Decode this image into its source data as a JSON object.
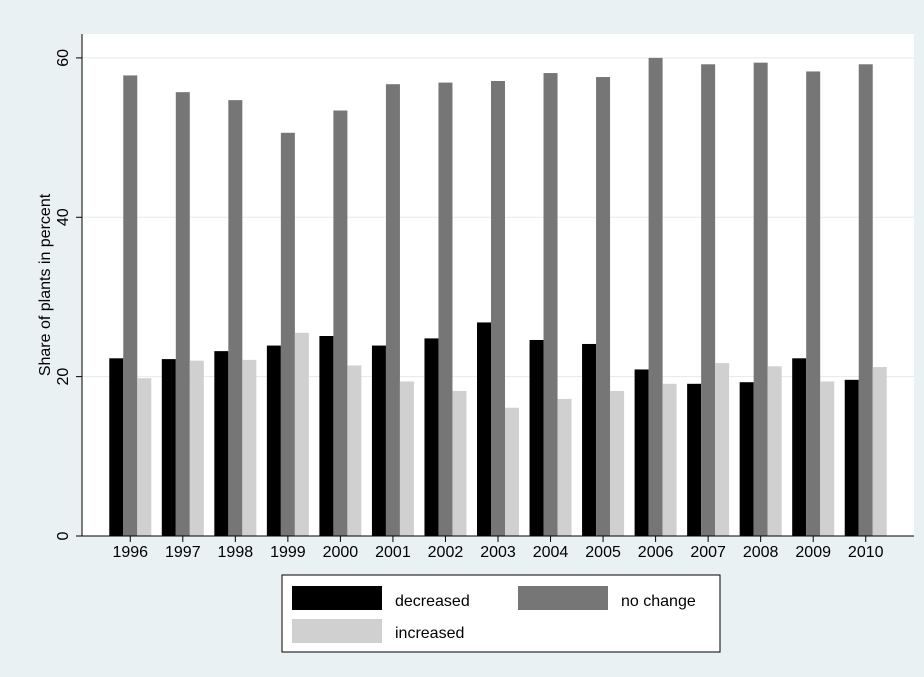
{
  "chart_data": {
    "type": "bar",
    "categories": [
      "1996",
      "1997",
      "1998",
      "1999",
      "2000",
      "2001",
      "2002",
      "2003",
      "2004",
      "2005",
      "2006",
      "2007",
      "2008",
      "2009",
      "2010"
    ],
    "series": [
      {
        "name": "decreased",
        "color": "#000000",
        "values": [
          22.3,
          22.2,
          23.2,
          23.9,
          25.1,
          23.9,
          24.8,
          26.8,
          24.6,
          24.1,
          20.9,
          19.1,
          19.3,
          22.3,
          19.6
        ]
      },
      {
        "name": "no change",
        "color": "#767676",
        "values": [
          57.8,
          55.7,
          54.7,
          50.6,
          53.4,
          56.7,
          56.9,
          57.1,
          58.1,
          57.6,
          60.0,
          59.2,
          59.4,
          58.3,
          59.2
        ]
      },
      {
        "name": "increased",
        "color": "#d0d0d0",
        "values": [
          19.8,
          22.0,
          22.1,
          25.5,
          21.4,
          19.4,
          18.2,
          16.1,
          17.2,
          18.2,
          19.1,
          21.7,
          21.3,
          19.4,
          21.2
        ]
      }
    ],
    "title": "",
    "xlabel": "",
    "ylabel": "Share of plants in percent",
    "ylim": [
      0,
      63
    ],
    "yticks": [
      0,
      20,
      40,
      60
    ],
    "grid": true,
    "legend_position": "bottom"
  },
  "colors": {
    "plot_background": "#ffffff",
    "page_background": "#eaf1f3",
    "gridline": "#e2eaee"
  }
}
